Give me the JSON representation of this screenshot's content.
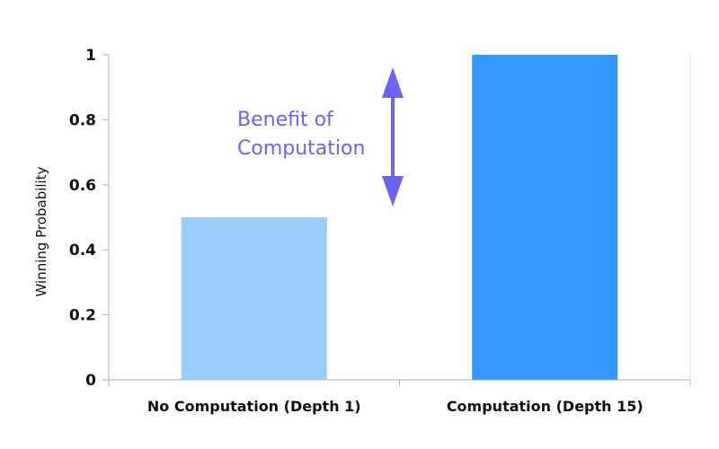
{
  "chart_data": {
    "type": "bar",
    "categories": [
      "No Computation (Depth 1)",
      "Computation (Depth 15)"
    ],
    "values": [
      0.5,
      1.0
    ],
    "title": "",
    "xlabel": "",
    "ylabel": "Winning Probability",
    "ylim": [
      0,
      1
    ],
    "yticks": [
      "0",
      "0.2",
      "0.4",
      "0.6",
      "0.8",
      "1"
    ],
    "colors": [
      "#99ccff",
      "#3399ff"
    ],
    "annotation": {
      "lines": [
        "Benefit of",
        "Computation"
      ],
      "from_value": 0.5,
      "to_value": 1.0,
      "color": "#6b63f5"
    },
    "grid": false
  }
}
